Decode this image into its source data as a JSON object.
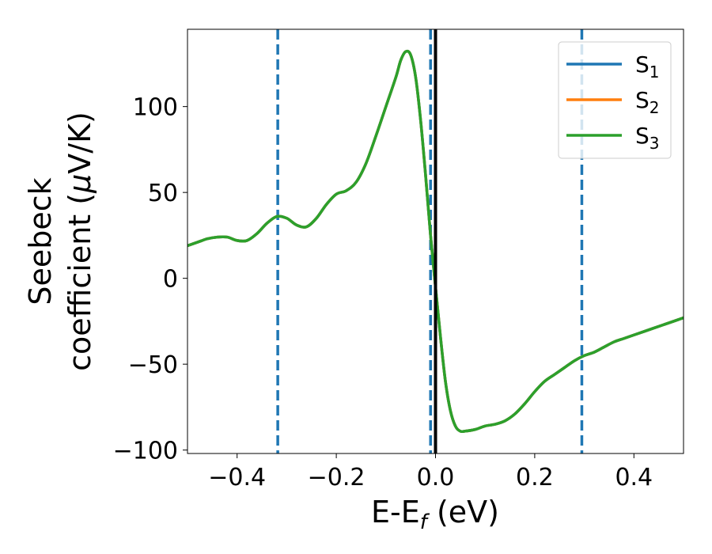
{
  "chart_data": {
    "type": "line",
    "xlabel": "E-E",
    "xlabel_sub": "f",
    "xlabel_unit": " (eV)",
    "ylabel_line1": "Seebeck",
    "ylabel_line2_pre": "coefficient  (",
    "ylabel_mu": "μ",
    "ylabel_line2_post": "V/K)",
    "xlim": [
      -0.5,
      0.5
    ],
    "ylim": [
      -102,
      145
    ],
    "xticks": [
      -0.4,
      -0.2,
      0.0,
      0.2,
      0.4
    ],
    "xtick_labels": [
      "−0.4",
      "−0.2",
      "0.0",
      "0.2",
      "0.4"
    ],
    "yticks": [
      -100,
      -50,
      0,
      50,
      100
    ],
    "ytick_labels": [
      "−100",
      "−50",
      "0",
      "50",
      "100"
    ],
    "grid": false,
    "legend_position": "top-right",
    "vlines_dashed": {
      "x": [
        -0.318,
        -0.01,
        0.295
      ],
      "color": "#1f77b4"
    },
    "vline_solid": {
      "x": 0.0,
      "color": "#000000"
    },
    "x": [
      -0.5,
      -0.48,
      -0.46,
      -0.44,
      -0.42,
      -0.4,
      -0.38,
      -0.36,
      -0.34,
      -0.32,
      -0.3,
      -0.28,
      -0.26,
      -0.24,
      -0.22,
      -0.2,
      -0.18,
      -0.16,
      -0.14,
      -0.12,
      -0.1,
      -0.08,
      -0.07,
      -0.06,
      -0.05,
      -0.04,
      -0.03,
      -0.02,
      -0.01,
      0.0,
      0.01,
      0.02,
      0.03,
      0.04,
      0.05,
      0.06,
      0.08,
      0.1,
      0.12,
      0.14,
      0.16,
      0.18,
      0.2,
      0.22,
      0.24,
      0.26,
      0.28,
      0.3,
      0.32,
      0.34,
      0.36,
      0.38,
      0.4,
      0.42,
      0.44,
      0.46,
      0.48,
      0.5
    ],
    "series": [
      {
        "name": "S",
        "sub": "1",
        "color": "#1f77b4",
        "values": [
          19,
          21,
          23,
          24,
          24,
          22,
          22,
          26,
          32,
          36,
          35,
          31,
          30,
          35,
          43,
          49,
          51,
          56,
          67,
          83,
          100,
          117,
          127,
          132,
          130,
          117,
          92,
          60,
          25,
          -5,
          -34,
          -60,
          -77,
          -86,
          -89,
          -89,
          -88,
          -86,
          -85,
          -83,
          -79,
          -73,
          -66,
          -60,
          -56,
          -52,
          -48,
          -45,
          -43,
          -40,
          -37,
          -35,
          -33,
          -31,
          -29,
          -27,
          -25,
          -23
        ]
      },
      {
        "name": "S",
        "sub": "2",
        "color": "#ff7f0e",
        "values": [
          19,
          21,
          23,
          24,
          24,
          22,
          22,
          26,
          32,
          36,
          35,
          31,
          30,
          35,
          43,
          49,
          51,
          56,
          67,
          83,
          100,
          117,
          127,
          132,
          130,
          117,
          92,
          60,
          25,
          -5,
          -34,
          -60,
          -77,
          -86,
          -89,
          -89,
          -88,
          -86,
          -85,
          -83,
          -79,
          -73,
          -66,
          -60,
          -56,
          -52,
          -48,
          -45,
          -43,
          -40,
          -37,
          -35,
          -33,
          -31,
          -29,
          -27,
          -25,
          -23
        ]
      },
      {
        "name": "S",
        "sub": "3",
        "color": "#2ca02c",
        "values": [
          19,
          21,
          23,
          24,
          24,
          22,
          22,
          26,
          32,
          36,
          35,
          31,
          30,
          35,
          43,
          49,
          51,
          56,
          67,
          83,
          100,
          117,
          127,
          132,
          130,
          117,
          92,
          60,
          25,
          -5,
          -34,
          -60,
          -77,
          -86,
          -89,
          -89,
          -88,
          -86,
          -85,
          -83,
          -79,
          -73,
          -66,
          -60,
          -56,
          -52,
          -48,
          -45,
          -43,
          -40,
          -37,
          -35,
          -33,
          -31,
          -29,
          -27,
          -25,
          -23
        ]
      }
    ]
  }
}
